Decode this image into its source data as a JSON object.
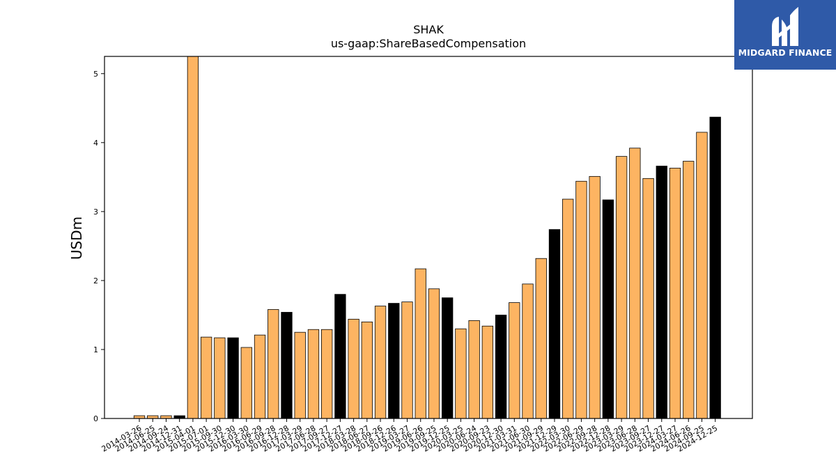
{
  "chart_data": {
    "type": "bar",
    "title": "SHAK",
    "subtitle": "us-gaap:ShareBasedCompensation",
    "ylabel": "USDm",
    "xlabel": "",
    "ylim": [
      0,
      5.25
    ],
    "yticks": [
      0,
      1,
      2,
      3,
      4,
      5
    ],
    "grid": false,
    "categories": [
      "2014-03-26",
      "2014-06-25",
      "2014-09-24",
      "2014-12-31",
      "2015-04-01",
      "2015-07-01",
      "2015-09-30",
      "2015-12-30",
      "2016-03-30",
      "2016-06-29",
      "2016-09-28",
      "2016-12-28",
      "2017-03-29",
      "2017-06-28",
      "2017-09-27",
      "2017-12-27",
      "2018-03-28",
      "2018-06-27",
      "2018-09-26",
      "2018-12-26",
      "2019-03-27",
      "2019-06-26",
      "2019-09-25",
      "2019-12-25",
      "2020-03-25",
      "2020-06-24",
      "2020-09-23",
      "2020-12-30",
      "2021-03-31",
      "2021-06-30",
      "2021-09-29",
      "2021-12-29",
      "2022-03-30",
      "2022-06-29",
      "2022-09-28",
      "2022-12-28",
      "2023-03-29",
      "2023-06-28",
      "2023-09-27",
      "2023-12-27",
      "2024-03-27",
      "2024-06-26",
      "2024-09-25",
      "2024-12-25"
    ],
    "values": [
      0.04,
      0.04,
      0.04,
      0.04,
      5.25,
      1.18,
      1.17,
      1.17,
      1.03,
      1.21,
      1.58,
      1.54,
      1.25,
      1.29,
      1.29,
      1.8,
      1.44,
      1.4,
      1.63,
      1.67,
      1.69,
      2.17,
      1.88,
      1.75,
      1.3,
      1.42,
      1.34,
      1.5,
      1.68,
      1.95,
      2.32,
      2.74,
      3.18,
      3.44,
      3.51,
      3.17,
      3.8,
      3.92,
      3.48,
      3.66,
      3.63,
      3.73,
      4.15,
      4.37
    ],
    "fiscal_year_end": [
      false,
      false,
      false,
      true,
      false,
      false,
      false,
      true,
      false,
      false,
      false,
      true,
      false,
      false,
      false,
      true,
      false,
      false,
      false,
      true,
      false,
      false,
      false,
      true,
      false,
      false,
      false,
      true,
      false,
      false,
      false,
      true,
      false,
      false,
      false,
      true,
      false,
      false,
      false,
      true,
      false,
      false,
      false,
      true
    ],
    "colors": {
      "quarter": "#fdb462",
      "year_end": "#000000",
      "edge": "#000000"
    }
  },
  "logo": {
    "text": "MIDGARD FINANCE",
    "background": "#2f5aa8"
  }
}
